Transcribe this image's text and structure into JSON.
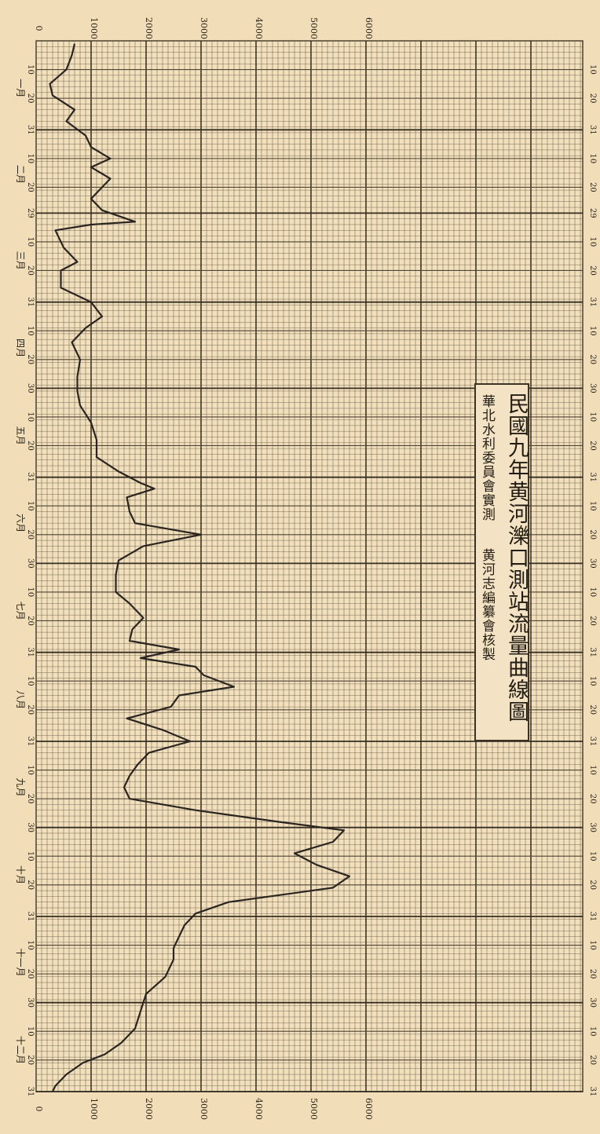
{
  "chart_data": {
    "type": "line",
    "title": "民國九年黄河濼口測站流量曲線圖",
    "subtitle_left": "華北水利委員會實測",
    "subtitle_right": "黄河志編纂會核製",
    "ylim": [
      0,
      6000
    ],
    "y_ticks_top": [
      "0",
      "1000",
      "2000",
      "3000",
      "4000",
      "5000",
      "6000"
    ],
    "y_ticks_bottom": [
      "0",
      "1000",
      "2000",
      "3000",
      "4000",
      "5000",
      "6000"
    ],
    "months": [
      {
        "label": "一月",
        "days": 31,
        "ticks": [
          "10",
          "20",
          "31"
        ]
      },
      {
        "label": "二月",
        "days": 29,
        "ticks": [
          "10",
          "20",
          "29"
        ]
      },
      {
        "label": "三月",
        "days": 31,
        "ticks": [
          "10",
          "20",
          "31"
        ]
      },
      {
        "label": "四月",
        "days": 30,
        "ticks": [
          "10",
          "20",
          "30"
        ]
      },
      {
        "label": "五月",
        "days": 31,
        "ticks": [
          "10",
          "20",
          "31"
        ]
      },
      {
        "label": "六月",
        "days": 30,
        "ticks": [
          "10",
          "20",
          "30"
        ]
      },
      {
        "label": "七月",
        "days": 31,
        "ticks": [
          "10",
          "20",
          "31"
        ]
      },
      {
        "label": "八月",
        "days": 31,
        "ticks": [
          "10",
          "20",
          "31"
        ]
      },
      {
        "label": "九月",
        "days": 30,
        "ticks": [
          "10",
          "20",
          "30"
        ]
      },
      {
        "label": "十月",
        "days": 31,
        "ticks": [
          "10",
          "20",
          "31"
        ]
      },
      {
        "label": "十一月",
        "days": 30,
        "ticks": [
          "10",
          "20",
          "30"
        ]
      },
      {
        "label": "十二月",
        "days": 31,
        "ticks": [
          "10",
          "20",
          "31"
        ]
      }
    ],
    "series": [
      {
        "x_unit": "day-of-year",
        "points": [
          [
            1,
            700
          ],
          [
            5,
            650
          ],
          [
            10,
            550
          ],
          [
            15,
            250
          ],
          [
            19,
            300
          ],
          [
            24,
            700
          ],
          [
            28,
            550
          ],
          [
            33,
            900
          ],
          [
            37,
            1000
          ],
          [
            41,
            1350
          ],
          [
            44,
            1000
          ],
          [
            48,
            1350
          ],
          [
            51,
            1200
          ],
          [
            55,
            1000
          ],
          [
            59,
            1200
          ],
          [
            62,
            1650
          ],
          [
            63,
            1800
          ],
          [
            64,
            1000
          ],
          [
            66,
            350
          ],
          [
            72,
            500
          ],
          [
            77,
            750
          ],
          [
            80,
            450
          ],
          [
            86,
            450
          ],
          [
            91,
            1000
          ],
          [
            96,
            1200
          ],
          [
            100,
            900
          ],
          [
            105,
            650
          ],
          [
            111,
            800
          ],
          [
            117,
            750
          ],
          [
            122,
            750
          ],
          [
            127,
            800
          ],
          [
            133,
            1000
          ],
          [
            139,
            1100
          ],
          [
            145,
            1100
          ],
          [
            150,
            1500
          ],
          [
            154,
            1900
          ],
          [
            156,
            2150
          ],
          [
            159,
            1650
          ],
          [
            164,
            1700
          ],
          [
            168,
            1800
          ],
          [
            172,
            3000
          ],
          [
            176,
            1950
          ],
          [
            181,
            1500
          ],
          [
            186,
            1450
          ],
          [
            192,
            1450
          ],
          [
            196,
            1700
          ],
          [
            201,
            1950
          ],
          [
            205,
            1750
          ],
          [
            209,
            1700
          ],
          [
            212,
            2600
          ],
          [
            215,
            1900
          ],
          [
            218,
            2900
          ],
          [
            221,
            3050
          ],
          [
            225,
            3600
          ],
          [
            228,
            2600
          ],
          [
            232,
            2450
          ],
          [
            236,
            1650
          ],
          [
            240,
            2300
          ],
          [
            244,
            2800
          ],
          [
            248,
            2050
          ],
          [
            252,
            1850
          ],
          [
            256,
            1700
          ],
          [
            260,
            1600
          ],
          [
            264,
            1700
          ],
          [
            268,
            2900
          ],
          [
            272,
            4400
          ],
          [
            275,
            5600
          ],
          [
            279,
            5400
          ],
          [
            283,
            4700
          ],
          [
            287,
            5100
          ],
          [
            291,
            5700
          ],
          [
            295,
            5400
          ],
          [
            300,
            3500
          ],
          [
            304,
            2900
          ],
          [
            308,
            2700
          ],
          [
            312,
            2600
          ],
          [
            316,
            2500
          ],
          [
            320,
            2500
          ],
          [
            326,
            2350
          ],
          [
            332,
            2000
          ],
          [
            338,
            1900
          ],
          [
            344,
            1800
          ],
          [
            349,
            1550
          ],
          [
            353,
            1250
          ],
          [
            356,
            850
          ],
          [
            360,
            550
          ],
          [
            364,
            350
          ],
          [
            366,
            300
          ]
        ]
      }
    ]
  }
}
